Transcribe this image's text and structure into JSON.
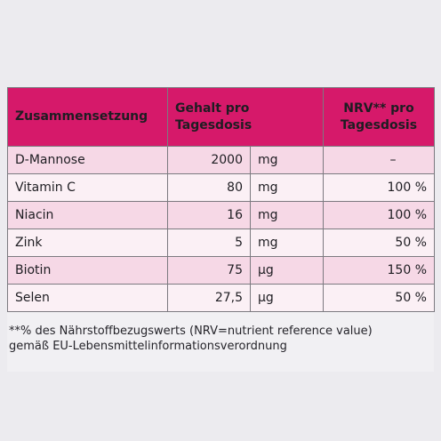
{
  "table": {
    "header": {
      "composition": "Zusammensetzung",
      "content_line1": "Gehalt pro",
      "content_line2": "Tagesdosis",
      "nrv_line1": "NRV** pro",
      "nrv_line2": "Tagesdosis"
    },
    "rows": [
      {
        "name": "D-Mannose",
        "amount": "2000",
        "unit": "mg",
        "nrv": "–"
      },
      {
        "name": "Vitamin C",
        "amount": "80",
        "unit": "mg",
        "nrv": "100 %"
      },
      {
        "name": "Niacin",
        "amount": "16",
        "unit": "mg",
        "nrv": "100 %"
      },
      {
        "name": "Zink",
        "amount": "5",
        "unit": "mg",
        "nrv": "50 %"
      },
      {
        "name": "Biotin",
        "amount": "75",
        "unit": "µg",
        "nrv": "150 %"
      },
      {
        "name": "Selen",
        "amount": "27,5",
        "unit": "µg",
        "nrv": "50 %"
      }
    ]
  },
  "footnote": {
    "line1": "**% des Nährstoffbezugswerts (NRV=nutrient reference value)",
    "line2": "gemäß EU-Lebensmittelinformationsverordnung"
  },
  "colors": {
    "header": "#d6196a",
    "row_dark": "#f6d8e6",
    "row_light": "#fbf0f5"
  }
}
